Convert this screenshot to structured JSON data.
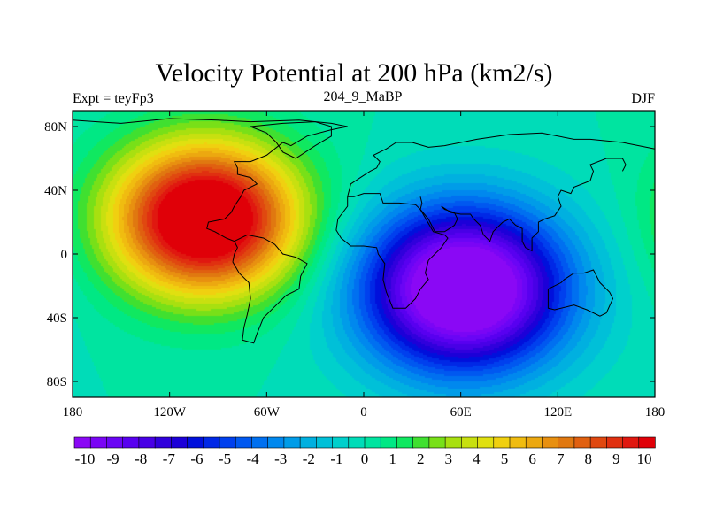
{
  "chart_data": {
    "type": "heatmap",
    "title": "Velocity Potential at 200 hPa (km2/s)",
    "left_label": "Expt = teyFp3",
    "center_label": "204_9_MaBP",
    "right_label": "DJF",
    "x_range": [
      -180,
      180
    ],
    "y_range": [
      -90,
      90
    ],
    "x_ticks": [
      {
        "value": -180,
        "label": "180"
      },
      {
        "value": -120,
        "label": "120W"
      },
      {
        "value": -60,
        "label": "60W"
      },
      {
        "value": 0,
        "label": "0"
      },
      {
        "value": 60,
        "label": "60E"
      },
      {
        "value": 120,
        "label": "120E"
      },
      {
        "value": 180,
        "label": "180"
      }
    ],
    "y_ticks": [
      {
        "value": 80,
        "label": "80N"
      },
      {
        "value": 40,
        "label": "40N"
      },
      {
        "value": 0,
        "label": "0"
      },
      {
        "value": -40,
        "label": "40S"
      },
      {
        "value": -80,
        "label": "80S"
      }
    ],
    "levels": [
      -10,
      -9.5,
      -9,
      -8.5,
      -8,
      -7.5,
      -7,
      -6.5,
      -6,
      -5.5,
      -5,
      -4.5,
      -4,
      -3.5,
      -3,
      -2.5,
      -2,
      -1.5,
      -1,
      -0.5,
      0,
      0.5,
      1,
      1.5,
      2,
      2.5,
      3,
      3.5,
      4,
      4.5,
      5,
      5.5,
      6,
      6.5,
      7,
      7.5,
      8,
      8.5,
      9,
      9.5,
      10
    ],
    "colorbar_labels": [
      "-10",
      "-9",
      "-8",
      "-7",
      "-6",
      "-5",
      "-4",
      "-3",
      "-2",
      "-1",
      "0",
      "1",
      "2",
      "3",
      "4",
      "5",
      "6",
      "7",
      "8",
      "9",
      "10"
    ],
    "colors": [
      "#8a08f5",
      "#7a05f5",
      "#6a05f5",
      "#5800f0",
      "#4800e6",
      "#3000dc",
      "#1c00d8",
      "#0010dc",
      "#0028e6",
      "#0040ee",
      "#0058f0",
      "#0070f0",
      "#0088ee",
      "#009ce8",
      "#00b0e0",
      "#00c0d8",
      "#00d0cc",
      "#00dcb8",
      "#00e4a0",
      "#00e884",
      "#10e860",
      "#40e030",
      "#78e018",
      "#a8e010",
      "#c8e010",
      "#e0e010",
      "#f0d010",
      "#f0bc10",
      "#eca810",
      "#e89010",
      "#e07810",
      "#e06010",
      "#e04810",
      "#e03010",
      "#e01810",
      "#e00008"
    ],
    "centers": [
      {
        "lon": -98,
        "lat": 22,
        "amp": 12.5,
        "sx": 40,
        "sy": 33
      },
      {
        "lon": 62,
        "lat": -22,
        "amp": -12.5,
        "sx": 44,
        "sy": 36
      }
    ],
    "coast_outline_lonlat": [
      [
        [
          -180,
          84
        ],
        [
          -150,
          82
        ],
        [
          -120,
          85
        ],
        [
          -90,
          84
        ],
        [
          -70,
          83
        ],
        [
          -40,
          84
        ],
        [
          -20,
          82
        ],
        [
          -10,
          80
        ],
        [
          -20,
          78
        ],
        [
          -35,
          74
        ],
        [
          -45,
          68
        ],
        [
          -50,
          70
        ],
        [
          -55,
          66
        ],
        [
          -60,
          62
        ],
        [
          -70,
          58
        ],
        [
          -80,
          58
        ],
        [
          -78,
          54
        ],
        [
          -78,
          50
        ],
        [
          -70,
          48
        ],
        [
          -66,
          44
        ],
        [
          -70,
          42
        ],
        [
          -74,
          40
        ],
        [
          -76,
          36
        ],
        [
          -80,
          30
        ],
        [
          -82,
          26
        ],
        [
          -86,
          22
        ],
        [
          -96,
          20
        ],
        [
          -97,
          16
        ],
        [
          -92,
          14
        ],
        [
          -85,
          10
        ],
        [
          -80,
          8
        ],
        [
          -78,
          4
        ],
        [
          -80,
          0
        ],
        [
          -81,
          -5
        ],
        [
          -77,
          -12
        ],
        [
          -71,
          -18
        ],
        [
          -70,
          -28
        ],
        [
          -72,
          -38
        ],
        [
          -74,
          -46
        ],
        [
          -75,
          -54
        ],
        [
          -68,
          -56
        ],
        [
          -66,
          -50
        ],
        [
          -62,
          -40
        ],
        [
          -56,
          -34
        ],
        [
          -48,
          -26
        ],
        [
          -40,
          -22
        ],
        [
          -39,
          -14
        ],
        [
          -35,
          -6
        ],
        [
          -42,
          -2
        ],
        [
          -50,
          0
        ],
        [
          -55,
          6
        ],
        [
          -62,
          10
        ],
        [
          -72,
          12
        ],
        [
          -78,
          9
        ],
        [
          -80,
          8
        ]
      ],
      [
        [
          -10,
          36
        ],
        [
          -6,
          36
        ],
        [
          0,
          38
        ],
        [
          10,
          38
        ],
        [
          12,
          32
        ],
        [
          22,
          32
        ],
        [
          32,
          31
        ],
        [
          35,
          28
        ],
        [
          43,
          14
        ],
        [
          50,
          12
        ],
        [
          52,
          10
        ],
        [
          48,
          4
        ],
        [
          40,
          -4
        ],
        [
          38,
          -12
        ],
        [
          40,
          -16
        ],
        [
          35,
          -22
        ],
        [
          32,
          -28
        ],
        [
          26,
          -34
        ],
        [
          18,
          -34
        ],
        [
          14,
          -24
        ],
        [
          12,
          -16
        ],
        [
          13,
          -6
        ],
        [
          9,
          0
        ],
        [
          8,
          4
        ],
        [
          0,
          5
        ],
        [
          -8,
          5
        ],
        [
          -14,
          10
        ],
        [
          -17,
          15
        ],
        [
          -16,
          22
        ],
        [
          -10,
          30
        ],
        [
          -10,
          36
        ]
      ],
      [
        [
          -10,
          36
        ],
        [
          -8,
          44
        ],
        [
          -2,
          48
        ],
        [
          4,
          52
        ],
        [
          8,
          54
        ],
        [
          10,
          58
        ],
        [
          6,
          62
        ],
        [
          14,
          66
        ],
        [
          20,
          70
        ],
        [
          30,
          70
        ],
        [
          40,
          67
        ],
        [
          50,
          68
        ],
        [
          60,
          70
        ],
        [
          70,
          72
        ],
        [
          90,
          75
        ],
        [
          110,
          76
        ],
        [
          130,
          72
        ],
        [
          140,
          72
        ],
        [
          160,
          70
        ],
        [
          170,
          68
        ],
        [
          180,
          66
        ]
      ],
      [
        [
          35,
          36
        ],
        [
          36,
          32
        ],
        [
          35,
          28
        ],
        [
          40,
          22
        ],
        [
          44,
          14
        ],
        [
          50,
          14
        ],
        [
          56,
          18
        ],
        [
          58,
          22
        ],
        [
          56,
          26
        ],
        [
          50,
          28
        ],
        [
          48,
          30
        ],
        [
          54,
          26
        ],
        [
          60,
          25
        ],
        [
          66,
          25
        ],
        [
          68,
          22
        ],
        [
          72,
          18
        ],
        [
          74,
          12
        ],
        [
          78,
          8
        ],
        [
          80,
          14
        ],
        [
          86,
          20
        ],
        [
          90,
          22
        ],
        [
          94,
          18
        ],
        [
          98,
          16
        ],
        [
          98,
          8
        ],
        [
          100,
          4
        ],
        [
          104,
          2
        ],
        [
          104,
          10
        ],
        [
          108,
          14
        ],
        [
          108,
          20
        ],
        [
          112,
          22
        ],
        [
          118,
          24
        ],
        [
          122,
          30
        ],
        [
          120,
          36
        ],
        [
          122,
          40
        ],
        [
          128,
          38
        ],
        [
          130,
          42
        ],
        [
          140,
          46
        ],
        [
          142,
          52
        ],
        [
          140,
          56
        ],
        [
          150,
          60
        ],
        [
          160,
          60
        ],
        [
          162,
          56
        ],
        [
          160,
          52
        ]
      ],
      [
        [
          114,
          -22
        ],
        [
          114,
          -34
        ],
        [
          118,
          -35
        ],
        [
          130,
          -32
        ],
        [
          138,
          -35
        ],
        [
          146,
          -39
        ],
        [
          150,
          -37
        ],
        [
          154,
          -28
        ],
        [
          152,
          -24
        ],
        [
          146,
          -18
        ],
        [
          142,
          -10
        ],
        [
          136,
          -12
        ],
        [
          130,
          -12
        ],
        [
          124,
          -16
        ],
        [
          122,
          -18
        ],
        [
          114,
          -22
        ]
      ],
      [
        [
          -50,
          82
        ],
        [
          -30,
          83
        ],
        [
          -20,
          80
        ],
        [
          -20,
          74
        ],
        [
          -30,
          68
        ],
        [
          -42,
          60
        ],
        [
          -50,
          64
        ],
        [
          -54,
          70
        ],
        [
          -60,
          76
        ],
        [
          -70,
          80
        ],
        [
          -50,
          82
        ]
      ]
    ]
  }
}
